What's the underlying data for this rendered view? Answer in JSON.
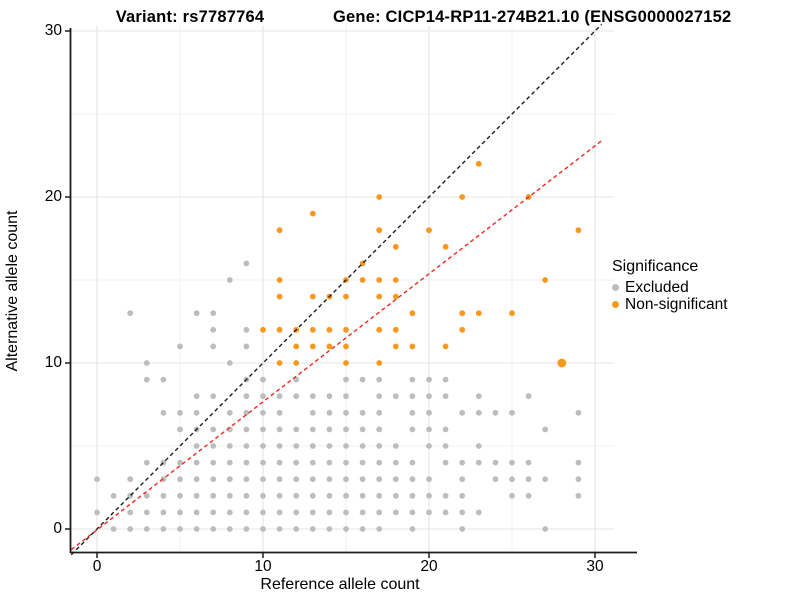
{
  "chart_data": {
    "type": "scatter",
    "titles": [
      "Variant: rs7787764",
      "Gene: CICP14-RP11-274B21.10 (ENSG0000027152"
    ],
    "xlabel": "Reference allele count",
    "ylabel": "Alternative allele count",
    "xlim": [
      -1.55,
      31.3
    ],
    "ylim": [
      -1.55,
      30.4
    ],
    "x_ticks": [
      0,
      10,
      20,
      30
    ],
    "y_ticks": [
      0,
      10,
      20,
      30
    ],
    "x_minor_ticks": [
      5,
      15,
      25
    ],
    "y_minor_ticks": [
      5,
      15,
      25
    ],
    "grid": true,
    "legend_title": "Significance",
    "legend_position": "right",
    "series": [
      {
        "name": "Excluded",
        "color": "#BDBDBD",
        "points": [
          [
            1,
            0
          ],
          [
            2,
            0
          ],
          [
            3,
            0
          ],
          [
            4,
            0
          ],
          [
            5,
            0
          ],
          [
            6,
            0
          ],
          [
            7,
            0
          ],
          [
            8,
            0
          ],
          [
            9,
            0
          ],
          [
            10,
            0
          ],
          [
            11,
            0
          ],
          [
            12,
            0
          ],
          [
            13,
            0
          ],
          [
            14,
            0
          ],
          [
            15,
            0
          ],
          [
            16,
            0
          ],
          [
            17,
            0
          ],
          [
            19,
            0
          ],
          [
            22,
            0
          ],
          [
            27,
            0
          ],
          [
            0,
            1
          ],
          [
            2,
            1
          ],
          [
            3,
            1
          ],
          [
            4,
            1
          ],
          [
            5,
            1
          ],
          [
            6,
            1
          ],
          [
            7,
            1
          ],
          [
            8,
            1
          ],
          [
            9,
            1
          ],
          [
            10,
            1
          ],
          [
            11,
            1
          ],
          [
            12,
            1
          ],
          [
            13,
            1
          ],
          [
            14,
            1
          ],
          [
            15,
            1
          ],
          [
            16,
            1
          ],
          [
            17,
            1
          ],
          [
            18,
            1
          ],
          [
            19,
            1
          ],
          [
            20,
            1
          ],
          [
            21,
            1
          ],
          [
            22,
            1
          ],
          [
            23,
            1
          ],
          [
            1,
            2
          ],
          [
            2,
            2
          ],
          [
            3,
            2
          ],
          [
            4,
            2
          ],
          [
            5,
            2
          ],
          [
            6,
            2
          ],
          [
            7,
            2
          ],
          [
            8,
            2
          ],
          [
            9,
            2
          ],
          [
            10,
            2
          ],
          [
            11,
            2
          ],
          [
            12,
            2
          ],
          [
            13,
            2
          ],
          [
            14,
            2
          ],
          [
            15,
            2
          ],
          [
            16,
            2
          ],
          [
            17,
            2
          ],
          [
            18,
            2
          ],
          [
            19,
            2
          ],
          [
            20,
            2
          ],
          [
            21,
            2
          ],
          [
            22,
            2
          ],
          [
            25,
            2
          ],
          [
            26,
            2
          ],
          [
            29,
            2
          ],
          [
            0,
            3
          ],
          [
            2,
            3
          ],
          [
            4,
            3
          ],
          [
            5,
            3
          ],
          [
            6,
            3
          ],
          [
            7,
            3
          ],
          [
            8,
            3
          ],
          [
            9,
            3
          ],
          [
            10,
            3
          ],
          [
            11,
            3
          ],
          [
            12,
            3
          ],
          [
            13,
            3
          ],
          [
            14,
            3
          ],
          [
            15,
            3
          ],
          [
            16,
            3
          ],
          [
            17,
            3
          ],
          [
            18,
            3
          ],
          [
            19,
            3
          ],
          [
            20,
            3
          ],
          [
            22,
            3
          ],
          [
            24,
            3
          ],
          [
            25,
            3
          ],
          [
            26,
            3
          ],
          [
            27,
            3
          ],
          [
            29,
            3
          ],
          [
            3,
            4
          ],
          [
            4,
            4
          ],
          [
            5,
            4
          ],
          [
            6,
            4
          ],
          [
            7,
            4
          ],
          [
            8,
            4
          ],
          [
            9,
            4
          ],
          [
            10,
            4
          ],
          [
            11,
            4
          ],
          [
            12,
            4
          ],
          [
            13,
            4
          ],
          [
            14,
            4
          ],
          [
            15,
            4
          ],
          [
            16,
            4
          ],
          [
            17,
            4
          ],
          [
            18,
            4
          ],
          [
            19,
            4
          ],
          [
            21,
            4
          ],
          [
            22,
            4
          ],
          [
            23,
            4
          ],
          [
            24,
            4
          ],
          [
            25,
            4
          ],
          [
            26,
            4
          ],
          [
            29,
            4
          ],
          [
            6,
            5
          ],
          [
            7,
            5
          ],
          [
            8,
            5
          ],
          [
            9,
            5
          ],
          [
            10,
            5
          ],
          [
            11,
            5
          ],
          [
            12,
            5
          ],
          [
            13,
            5
          ],
          [
            14,
            5
          ],
          [
            15,
            5
          ],
          [
            16,
            5
          ],
          [
            17,
            5
          ],
          [
            18,
            5
          ],
          [
            20,
            5
          ],
          [
            21,
            5
          ],
          [
            23,
            5
          ],
          [
            5,
            6
          ],
          [
            6,
            6
          ],
          [
            7,
            6
          ],
          [
            8,
            6
          ],
          [
            9,
            6
          ],
          [
            10,
            6
          ],
          [
            11,
            6
          ],
          [
            12,
            6
          ],
          [
            13,
            6
          ],
          [
            14,
            6
          ],
          [
            15,
            6
          ],
          [
            16,
            6
          ],
          [
            17,
            6
          ],
          [
            19,
            6
          ],
          [
            20,
            6
          ],
          [
            21,
            6
          ],
          [
            27,
            6
          ],
          [
            4,
            7
          ],
          [
            5,
            7
          ],
          [
            6,
            7
          ],
          [
            8,
            7
          ],
          [
            9,
            7
          ],
          [
            10,
            7
          ],
          [
            11,
            7
          ],
          [
            13,
            7
          ],
          [
            14,
            7
          ],
          [
            15,
            7
          ],
          [
            16,
            7
          ],
          [
            17,
            7
          ],
          [
            19,
            7
          ],
          [
            20,
            7
          ],
          [
            22,
            7
          ],
          [
            23,
            7
          ],
          [
            24,
            7
          ],
          [
            25,
            7
          ],
          [
            29,
            7
          ],
          [
            6,
            8
          ],
          [
            7,
            8
          ],
          [
            9,
            8
          ],
          [
            10,
            8
          ],
          [
            11,
            8
          ],
          [
            12,
            8
          ],
          [
            13,
            8
          ],
          [
            14,
            8
          ],
          [
            15,
            8
          ],
          [
            17,
            8
          ],
          [
            18,
            8
          ],
          [
            19,
            8
          ],
          [
            20,
            8
          ],
          [
            21,
            8
          ],
          [
            23,
            8
          ],
          [
            26,
            8
          ],
          [
            3,
            9
          ],
          [
            4,
            9
          ],
          [
            9,
            9
          ],
          [
            10,
            9
          ],
          [
            12,
            9
          ],
          [
            15,
            9
          ],
          [
            16,
            9
          ],
          [
            17,
            9
          ],
          [
            19,
            9
          ],
          [
            20,
            9
          ],
          [
            21,
            9
          ],
          [
            3,
            10
          ],
          [
            8,
            10
          ],
          [
            5,
            11
          ],
          [
            7,
            11
          ],
          [
            9,
            11
          ],
          [
            7,
            12
          ],
          [
            9,
            12
          ],
          [
            2,
            13
          ],
          [
            6,
            13
          ],
          [
            7,
            13
          ],
          [
            8,
            15
          ],
          [
            9,
            16
          ]
        ]
      },
      {
        "name": "Non-significant",
        "color": "#F8981D",
        "points": [
          [
            11,
            10
          ],
          [
            12,
            10
          ],
          [
            15,
            10
          ],
          [
            17,
            10
          ],
          [
            12,
            11
          ],
          [
            13,
            11
          ],
          [
            14,
            11
          ],
          [
            15,
            11
          ],
          [
            18,
            11
          ],
          [
            19,
            11
          ],
          [
            21,
            11
          ],
          [
            10,
            12
          ],
          [
            11,
            12
          ],
          [
            12,
            12
          ],
          [
            13,
            12
          ],
          [
            14,
            12
          ],
          [
            15,
            12
          ],
          [
            17,
            12
          ],
          [
            18,
            12
          ],
          [
            22,
            12
          ],
          [
            19,
            13
          ],
          [
            22,
            13
          ],
          [
            23,
            13
          ],
          [
            25,
            13
          ],
          [
            11,
            14
          ],
          [
            13,
            14
          ],
          [
            14,
            14
          ],
          [
            15,
            14
          ],
          [
            17,
            14
          ],
          [
            18,
            14
          ],
          [
            11,
            15
          ],
          [
            15,
            15
          ],
          [
            16,
            15
          ],
          [
            17,
            15
          ],
          [
            18,
            15
          ],
          [
            27,
            15
          ],
          [
            16,
            16
          ],
          [
            18,
            17
          ],
          [
            21,
            17
          ],
          [
            11,
            18
          ],
          [
            17,
            18
          ],
          [
            20,
            18
          ],
          [
            29,
            18
          ],
          [
            13,
            19
          ],
          [
            17,
            20
          ],
          [
            22,
            20
          ],
          [
            26,
            20
          ],
          [
            23,
            22
          ]
        ],
        "emphasized_point": [
          28,
          10
        ]
      }
    ],
    "reference_lines": [
      {
        "name": "identity-line",
        "slope": 1,
        "intercept": 0,
        "style": "dashed",
        "color": "#1C1C1C"
      },
      {
        "name": "expected-ratio-line",
        "slope": 0.771,
        "intercept": -0.05,
        "style": "dashed",
        "color": "#EE2A1D"
      }
    ]
  },
  "colors": {
    "excluded": "#BDBDBD",
    "non_significant": "#F8981D",
    "grid_major": "#E4E4E4",
    "grid_minor": "#F2F2F2",
    "axis": "#1C1C1C"
  }
}
